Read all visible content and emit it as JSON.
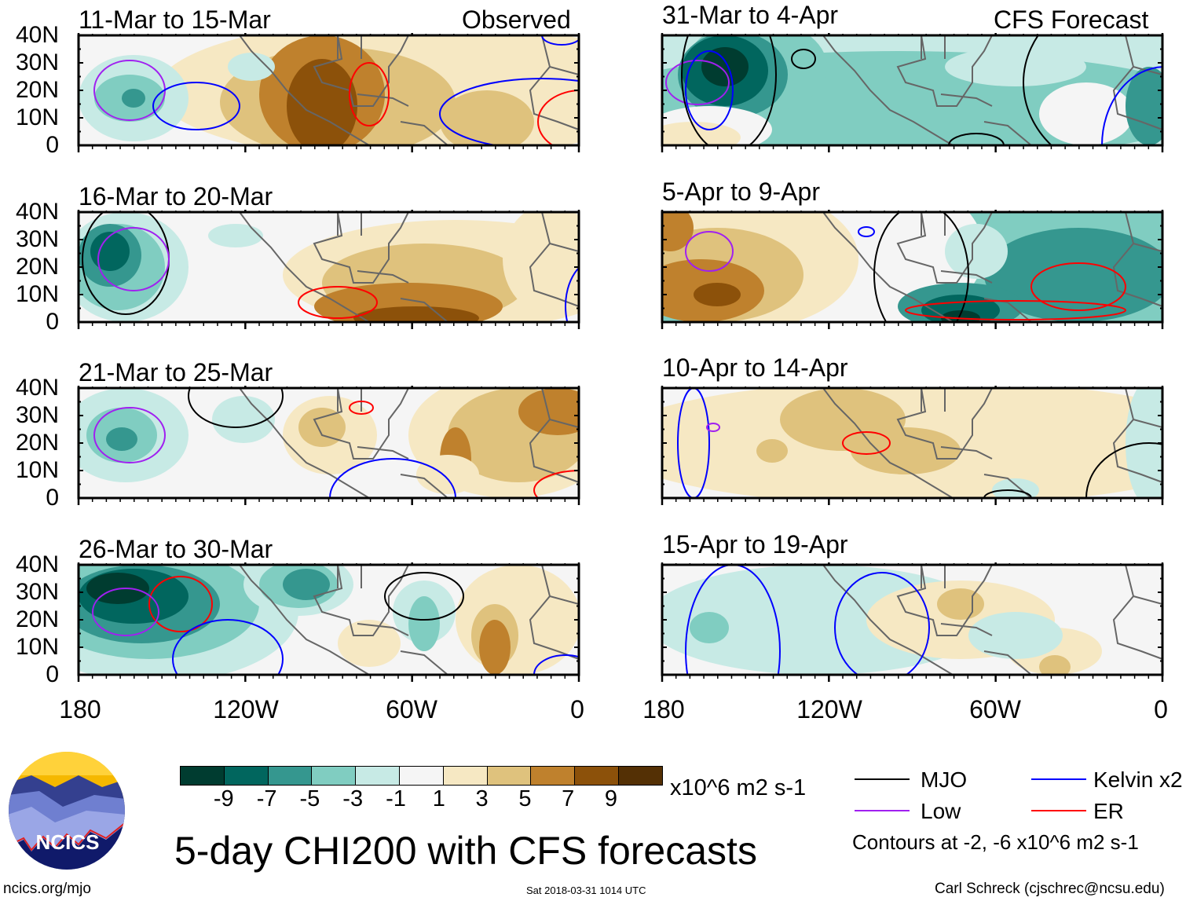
{
  "panels": {
    "left": [
      {
        "title": "11-Mar to 15-Mar",
        "tag": "Observed"
      },
      {
        "title": "16-Mar to 20-Mar"
      },
      {
        "title": "21-Mar to 25-Mar"
      },
      {
        "title": "26-Mar to 30-Mar"
      }
    ],
    "right": [
      {
        "title": "31-Mar to 4-Apr",
        "tag": "CFS Forecast"
      },
      {
        "title": "5-Apr to 9-Apr"
      },
      {
        "title": "10-Apr to 14-Apr"
      },
      {
        "title": "15-Apr to 19-Apr"
      }
    ]
  },
  "y_ticks": [
    "40N",
    "30N",
    "20N",
    "10N",
    "0"
  ],
  "x_ticks": [
    "180",
    "120W",
    "60W",
    "0"
  ],
  "colorbar": {
    "colors": [
      "#003c30",
      "#01665e",
      "#35978f",
      "#80cdc1",
      "#c7eae5",
      "#f5f5f5",
      "#f6e8c3",
      "#dfc27d",
      "#bf812d",
      "#8c510a",
      "#543005"
    ],
    "labels": [
      "-9",
      "-7",
      "-5",
      "-3",
      "-1",
      "1",
      "3",
      "5",
      "7",
      "9"
    ],
    "units": "x10^6 m2 s-1"
  },
  "legend": {
    "items": [
      {
        "label": "MJO",
        "color": "#000000"
      },
      {
        "label": "Kelvin x2",
        "color": "#0000ff"
      },
      {
        "label": "Low",
        "color": "#a020f0"
      },
      {
        "label": "ER",
        "color": "#ff0000"
      }
    ],
    "note": "Contours at -2, -6 x10^6 m2 s-1"
  },
  "title": "5-day CHI200 with CFS forecasts",
  "logo_text": "NCICS",
  "footer": {
    "left": "ncics.org/mjo",
    "center": "Sat 2018-03-31 1014 UTC",
    "right": "Carl Schreck (cjschrec@ncsu.edu)"
  }
}
